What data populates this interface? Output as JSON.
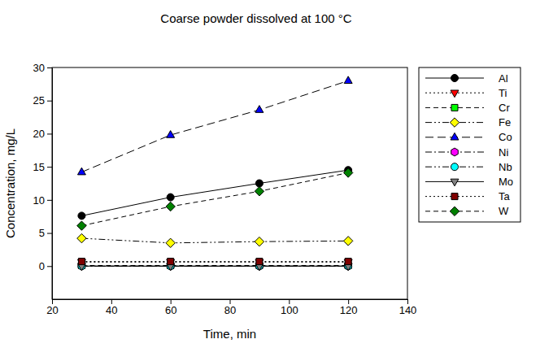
{
  "chart_data": {
    "type": "line",
    "title": "Coarse powder dissolved at 100 °C",
    "x_label": "Time, min",
    "y_label": "Concentration, mg/L",
    "x": [
      30,
      60,
      90,
      120
    ],
    "xlim": [
      20,
      140
    ],
    "xticks": [
      20,
      40,
      60,
      80,
      100,
      120,
      140
    ],
    "ylim": [
      -5,
      30
    ],
    "yticks": [
      0,
      5,
      10,
      15,
      20,
      25,
      30
    ],
    "grid": false,
    "legend": "outside-right",
    "series": [
      {
        "name": "Al",
        "color": "#000000",
        "marker": "circle",
        "line_style": "solid",
        "values": [
          7.6,
          10.4,
          12.5,
          14.5
        ]
      },
      {
        "name": "Ti",
        "color": "#ff0000",
        "marker": "triangle-down",
        "line_style": "dotted",
        "values": [
          0.6,
          0.6,
          0.6,
          0.6
        ]
      },
      {
        "name": "Cr",
        "color": "#00ff00",
        "marker": "square",
        "line_style": "dashed",
        "values": [
          0.1,
          0.1,
          0.1,
          0.1
        ]
      },
      {
        "name": "Fe",
        "color": "#ffff00",
        "marker": "diamond",
        "line_style": "dash-dot-dot",
        "values": [
          4.2,
          3.5,
          3.7,
          3.8
        ]
      },
      {
        "name": "Co",
        "color": "#0000ff",
        "marker": "triangle",
        "line_style": "long-dash",
        "values": [
          14.2,
          19.8,
          23.6,
          28.0
        ]
      },
      {
        "name": "Ni",
        "color": "#ff00ff",
        "marker": "hexagon",
        "line_style": "dash-dot",
        "values": [
          0.0,
          0.0,
          0.0,
          0.0
        ]
      },
      {
        "name": "Nb",
        "color": "#00ffff",
        "marker": "circle",
        "line_style": "dash-dot-dot",
        "values": [
          0.0,
          0.0,
          0.0,
          0.0
        ]
      },
      {
        "name": "Mo",
        "color": "#808080",
        "marker": "triangle-down",
        "line_style": "solid",
        "values": [
          0.0,
          0.0,
          0.0,
          0.0
        ]
      },
      {
        "name": "Ta",
        "color": "#800000",
        "marker": "square",
        "line_style": "dotted",
        "values": [
          0.7,
          0.7,
          0.7,
          0.7
        ]
      },
      {
        "name": "W",
        "color": "#008000",
        "marker": "diamond",
        "line_style": "dashed",
        "values": [
          6.1,
          9.0,
          11.3,
          14.1
        ]
      }
    ]
  }
}
